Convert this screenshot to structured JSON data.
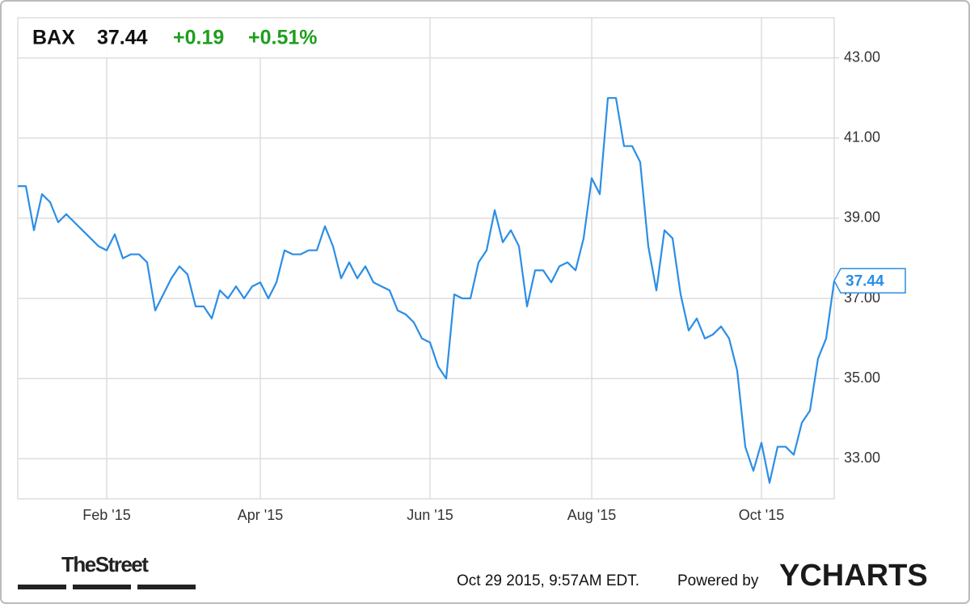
{
  "chart_data": {
    "type": "line",
    "symbol": "BAX",
    "price": "37.44",
    "change": "+0.19",
    "change_percent": "+0.51%",
    "categories": [
      null,
      null,
      null,
      null,
      null,
      null,
      null,
      null,
      null,
      null,
      null,
      "Feb '15",
      null,
      null,
      null,
      null,
      null,
      null,
      null,
      null,
      null,
      null,
      null,
      null,
      null,
      null,
      null,
      null,
      null,
      null,
      "Apr '15",
      null,
      null,
      null,
      null,
      null,
      null,
      null,
      null,
      null,
      null,
      null,
      null,
      null,
      null,
      null,
      null,
      null,
      null,
      null,
      null,
      "Jun '15",
      null,
      null,
      null,
      null,
      null,
      null,
      null,
      null,
      null,
      null,
      null,
      null,
      null,
      null,
      null,
      null,
      null,
      null,
      null,
      "Aug '15",
      null,
      null,
      null,
      null,
      null,
      null,
      null,
      null,
      null,
      null,
      null,
      null,
      null,
      null,
      null,
      null,
      null,
      null,
      null,
      null,
      "Oct '15",
      null,
      null,
      null,
      null,
      null,
      null,
      null,
      null,
      null
    ],
    "values": [
      39.8,
      39.8,
      38.7,
      39.6,
      39.4,
      38.9,
      39.1,
      38.9,
      38.7,
      38.5,
      38.3,
      38.2,
      38.6,
      38.0,
      38.1,
      38.1,
      37.9,
      36.7,
      37.1,
      37.5,
      37.8,
      37.6,
      36.8,
      36.8,
      36.5,
      37.2,
      37.0,
      37.3,
      37.0,
      37.3,
      37.4,
      37.0,
      37.4,
      38.2,
      38.1,
      38.1,
      38.2,
      38.2,
      38.8,
      38.3,
      37.5,
      37.9,
      37.5,
      37.8,
      37.4,
      37.3,
      37.2,
      36.7,
      36.6,
      36.4,
      36.0,
      35.9,
      35.3,
      35.0,
      37.1,
      37.0,
      37.0,
      37.9,
      38.2,
      39.2,
      38.4,
      38.7,
      38.3,
      36.8,
      37.7,
      37.7,
      37.4,
      37.8,
      37.9,
      37.7,
      38.5,
      40.0,
      39.6,
      42.0,
      42.0,
      40.8,
      40.8,
      40.4,
      38.3,
      37.2,
      38.7,
      38.5,
      37.1,
      36.2,
      36.5,
      36.0,
      36.1,
      36.3,
      36.0,
      35.2,
      33.3,
      32.7,
      33.4,
      32.4,
      33.3,
      33.3,
      33.1,
      33.9,
      34.2,
      35.5,
      36.0,
      37.44
    ],
    "color": "#2b8ee6",
    "ylim": [
      32,
      44
    ],
    "yticks": [
      {
        "value": 33,
        "label": "33.00"
      },
      {
        "value": 35,
        "label": "35.00"
      },
      {
        "value": 37,
        "label": "37.00"
      },
      {
        "value": 39,
        "label": "39.00"
      },
      {
        "value": 41,
        "label": "41.00"
      },
      {
        "value": 43,
        "label": "43.00"
      }
    ],
    "grid": true,
    "timestamp": "Oct 29 2015, 9:57AM EDT.",
    "powered_by": "Powered by",
    "brand": "YCHARTS",
    "source_logo": "TheStreet"
  }
}
